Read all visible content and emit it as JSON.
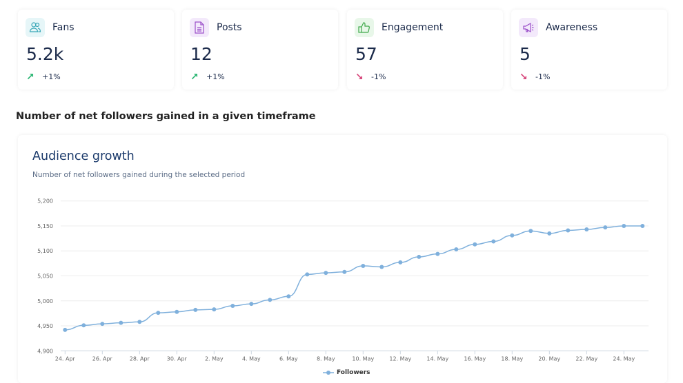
{
  "cards": [
    {
      "title": "Fans",
      "value": "5.2k",
      "change": "+1%",
      "trend": "up",
      "icon": "users-icon",
      "icon_color": "#3aa8b8",
      "icon_bg": "#e6f6f8"
    },
    {
      "title": "Posts",
      "value": "12",
      "change": "+1%",
      "trend": "up",
      "icon": "document-icon",
      "icon_color": "#9b4fc9",
      "icon_bg": "#f3e9fb"
    },
    {
      "title": "Engagement",
      "value": "57",
      "change": "-1%",
      "trend": "down",
      "icon": "thumbs-up-icon",
      "icon_color": "#3ea84a",
      "icon_bg": "#e8f7e9"
    },
    {
      "title": "Awareness",
      "value": "5",
      "change": "-1%",
      "trend": "down",
      "icon": "megaphone-icon",
      "icon_color": "#9b4fc9",
      "icon_bg": "#f3e9fb"
    }
  ],
  "colors": {
    "up": "#2bb673",
    "down": "#d6457a",
    "series": "#7fb0dc"
  },
  "section_title": "Number of net followers gained in a given timeframe",
  "chart_data": {
    "type": "line",
    "title": "Audience growth",
    "subtitle": "Number of net followers gained during the selected period",
    "xlabel": "",
    "ylabel": "",
    "ylim": [
      4900,
      5200
    ],
    "yticks": [
      "4,900",
      "4,950",
      "5,000",
      "5,050",
      "5,100",
      "5,150",
      "5,200"
    ],
    "xticks": [
      "24. Apr",
      "26. Apr",
      "28. Apr",
      "30. Apr",
      "2. May",
      "4. May",
      "6. May",
      "8. May",
      "10. May",
      "12. May",
      "14. May",
      "16. May",
      "18. May",
      "20. May",
      "22. May",
      "24. May"
    ],
    "grid": true,
    "legend_position": "bottom",
    "series": [
      {
        "name": "Followers",
        "x": [
          "24 Apr",
          "25 Apr",
          "26 Apr",
          "27 Apr",
          "28 Apr",
          "29 Apr",
          "30 Apr",
          "1 May",
          "2 May",
          "3 May",
          "4 May",
          "5 May",
          "6 May",
          "7 May",
          "8 May",
          "9 May",
          "10 May",
          "11 May",
          "12 May",
          "13 May",
          "14 May",
          "15 May",
          "16 May",
          "17 May",
          "18 May",
          "19 May",
          "20 May",
          "21 May",
          "22 May",
          "23 May",
          "24 May",
          "25 May"
        ],
        "values": [
          4942,
          4951,
          4954,
          4956,
          4958,
          4976,
          4978,
          4982,
          4983,
          4990,
          4994,
          5002,
          5009,
          5053,
          5056,
          5058,
          5070,
          5068,
          5077,
          5088,
          5094,
          5103,
          5113,
          5119,
          5131,
          5140,
          5135,
          5141,
          5143,
          5147,
          5150,
          5150
        ]
      }
    ]
  }
}
